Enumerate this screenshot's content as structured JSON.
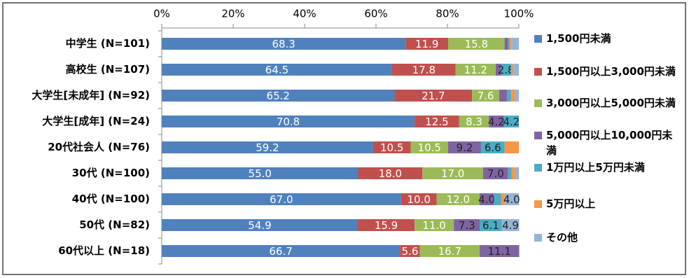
{
  "chart_data": {
    "type": "stacked-bar-horizontal",
    "categories": [
      "中学生 (N=101)",
      "高校生 (N=107)",
      "大学生[未成年] (N=92)",
      "大学生[成年] (N=24)",
      "20代社会人 (N=76)",
      "30代 (N=100)",
      "40代 (N=100)",
      "50代 (N=82)",
      "60代以上 (N=18)"
    ],
    "series": [
      {
        "name": "1,500円未満",
        "color": "#4f81bd",
        "values": [
          68.3,
          64.5,
          65.2,
          70.8,
          59.2,
          55.0,
          67.0,
          54.9,
          66.7
        ],
        "value_labels": [
          "68.3",
          "64.5",
          "65.2",
          "70.8",
          "59.2",
          "55.0",
          "67.0",
          "54.9",
          "66.7"
        ]
      },
      {
        "name": "1,500円以上3,000円未満",
        "color": "#c0504d",
        "values": [
          11.9,
          17.8,
          21.7,
          12.5,
          10.5,
          18.0,
          10.0,
          15.9,
          5.6
        ],
        "value_labels": [
          "11.9",
          "17.8",
          "21.7",
          "12.5",
          "10.5",
          "18.0",
          "10.0",
          "15.9",
          "5.6"
        ]
      },
      {
        "name": "3,000円以上5,000円未満",
        "color": "#9bbb59",
        "values": [
          15.8,
          11.2,
          7.6,
          8.3,
          10.5,
          17.0,
          12.0,
          11.0,
          16.7
        ],
        "value_labels": [
          "15.8",
          "11.2",
          "7.6",
          "8.3",
          "10.5",
          "17.0",
          "12.0",
          "11.0",
          "16.7"
        ]
      },
      {
        "name": "5,000円以上10,000円未満",
        "color": "#8064a2",
        "values": [
          1.0,
          1.5,
          2.2,
          4.2,
          9.2,
          7.0,
          4.0,
          7.3,
          11.1
        ],
        "value_labels": [
          null,
          null,
          null,
          "4.2",
          "9.2",
          "7.0",
          "4.0",
          "7.3",
          "11.1"
        ]
      },
      {
        "name": "1万円以上5万円未満",
        "color": "#4bacc6",
        "values": [
          0.5,
          2.8,
          1.1,
          4.2,
          6.6,
          1.0,
          2.0,
          6.1,
          0
        ],
        "value_labels": [
          null,
          "2.8",
          null,
          "4.2",
          "6.6",
          null,
          null,
          "6.1",
          null
        ]
      },
      {
        "name": "5万円以上",
        "color": "#f79646",
        "values": [
          0.5,
          0.5,
          1.1,
          0,
          4.0,
          1.0,
          1.0,
          0,
          0
        ],
        "value_labels": [
          null,
          null,
          null,
          null,
          null,
          null,
          null,
          null,
          null
        ]
      },
      {
        "name": "その他",
        "color": "#95b3d7",
        "values": [
          2.0,
          1.7,
          1.1,
          0,
          0,
          1.0,
          4.0,
          4.9,
          0
        ],
        "value_labels": [
          null,
          null,
          null,
          null,
          null,
          null,
          "4.0",
          "4.9",
          null
        ]
      }
    ],
    "xlim": [
      0,
      100
    ],
    "xticks": [
      {
        "value": 0,
        "label": "0%"
      },
      {
        "value": 20,
        "label": "20%"
      },
      {
        "value": 40,
        "label": "40%"
      },
      {
        "value": 60,
        "label": "60%"
      },
      {
        "value": 80,
        "label": "80%"
      },
      {
        "value": 100,
        "label": "100%"
      }
    ],
    "legend": "right"
  }
}
